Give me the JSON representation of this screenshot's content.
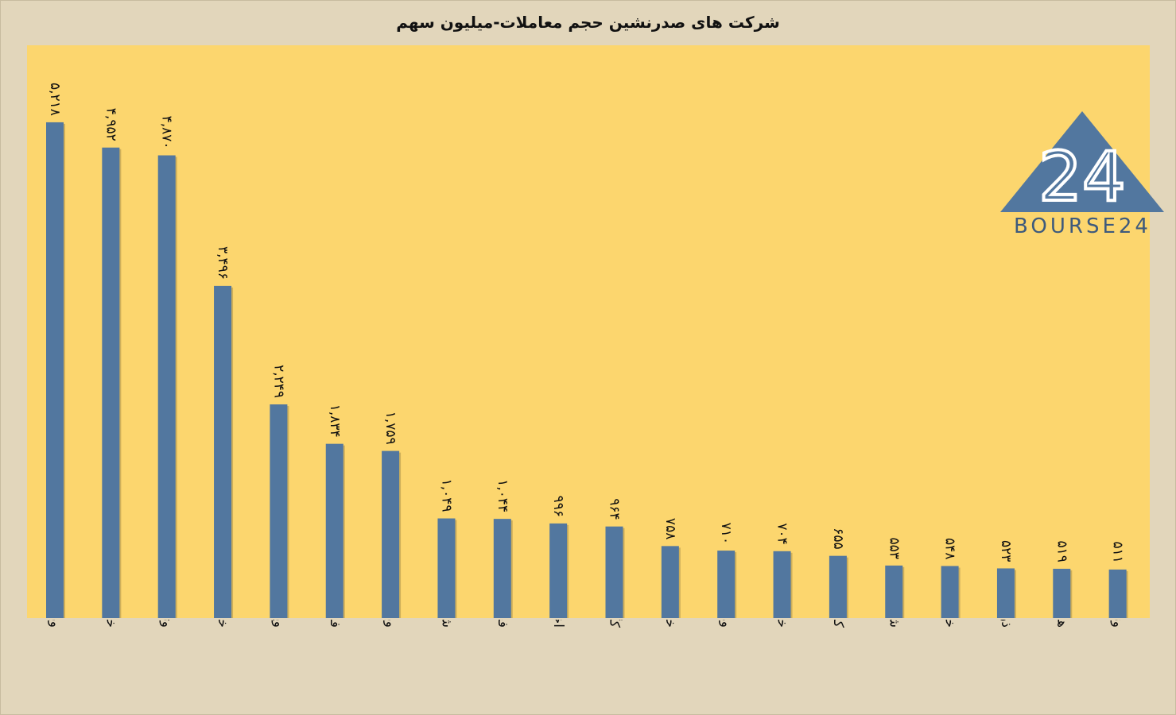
{
  "title": "شرکت های صدرنشین حجم معاملات-میلیون سهم",
  "logo": {
    "mark": "24",
    "text": "BOURSE24"
  },
  "colors": {
    "bar": "#52779f",
    "plot_background": "#fcd66e",
    "page_background": "#e2d6bb",
    "logo": "#52779f"
  },
  "chart_data": {
    "type": "bar",
    "title": "شرکت های صدرنشین حجم معاملات-میلیون سهم",
    "categories": [
      "وبملت",
      "خودرو",
      "وتجارت",
      "خساپا",
      "وپارس",
      "فولاد",
      "وبصادر",
      "شستا",
      "فخوز",
      "اخابر",
      "کگل",
      "خاور",
      "ومعادن",
      "خزامیا",
      "کرمان",
      "شتران",
      "خگستر",
      "ذوب",
      "های وب",
      "ونوین"
    ],
    "values": [
      5218,
      4952,
      4870,
      3496,
      2249,
      1834,
      1759,
      1049,
      1044,
      996,
      964,
      758,
      710,
      704,
      655,
      553,
      548,
      523,
      519,
      511
    ],
    "value_labels": [
      "۵,۲۱۸",
      "۴,۹۵۲",
      "۴,۸۷۰",
      "۳,۴۹۶",
      "۲,۲۴۹",
      "۱,۸۳۴",
      "۱,۷۵۹",
      "۱,۰۴۹",
      "۱,۰۴۴",
      "۹۹۶",
      "۹۶۴",
      "۷۵۸",
      "۷۱۰",
      "۷۰۴",
      "۶۵۵",
      "۵۵۳",
      "۵۴۸",
      "۵۲۳",
      "۵۱۹",
      "۵۱۱"
    ],
    "ylim": [
      0,
      6000
    ],
    "grid": false,
    "legend": "none"
  }
}
